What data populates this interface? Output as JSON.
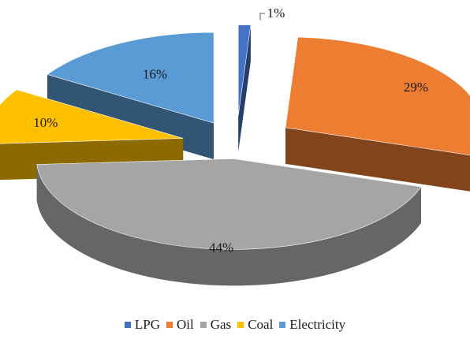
{
  "chart_data": {
    "type": "pie",
    "style": "3d-exploded",
    "title": "",
    "slices": [
      {
        "name": "LPG",
        "value": 1,
        "label": "1%",
        "color": "#4472C4"
      },
      {
        "name": "Oil",
        "value": 29,
        "label": "29%",
        "color": "#ED7D31"
      },
      {
        "name": "Gas",
        "value": 44,
        "label": "44%",
        "color": "#A5A5A5"
      },
      {
        "name": "Coal",
        "value": 10,
        "label": "10%",
        "color": "#FFC000"
      },
      {
        "name": "Electricity",
        "value": 16,
        "label": "16%",
        "color": "#5B9BD5"
      }
    ],
    "legend_position": "bottom"
  }
}
